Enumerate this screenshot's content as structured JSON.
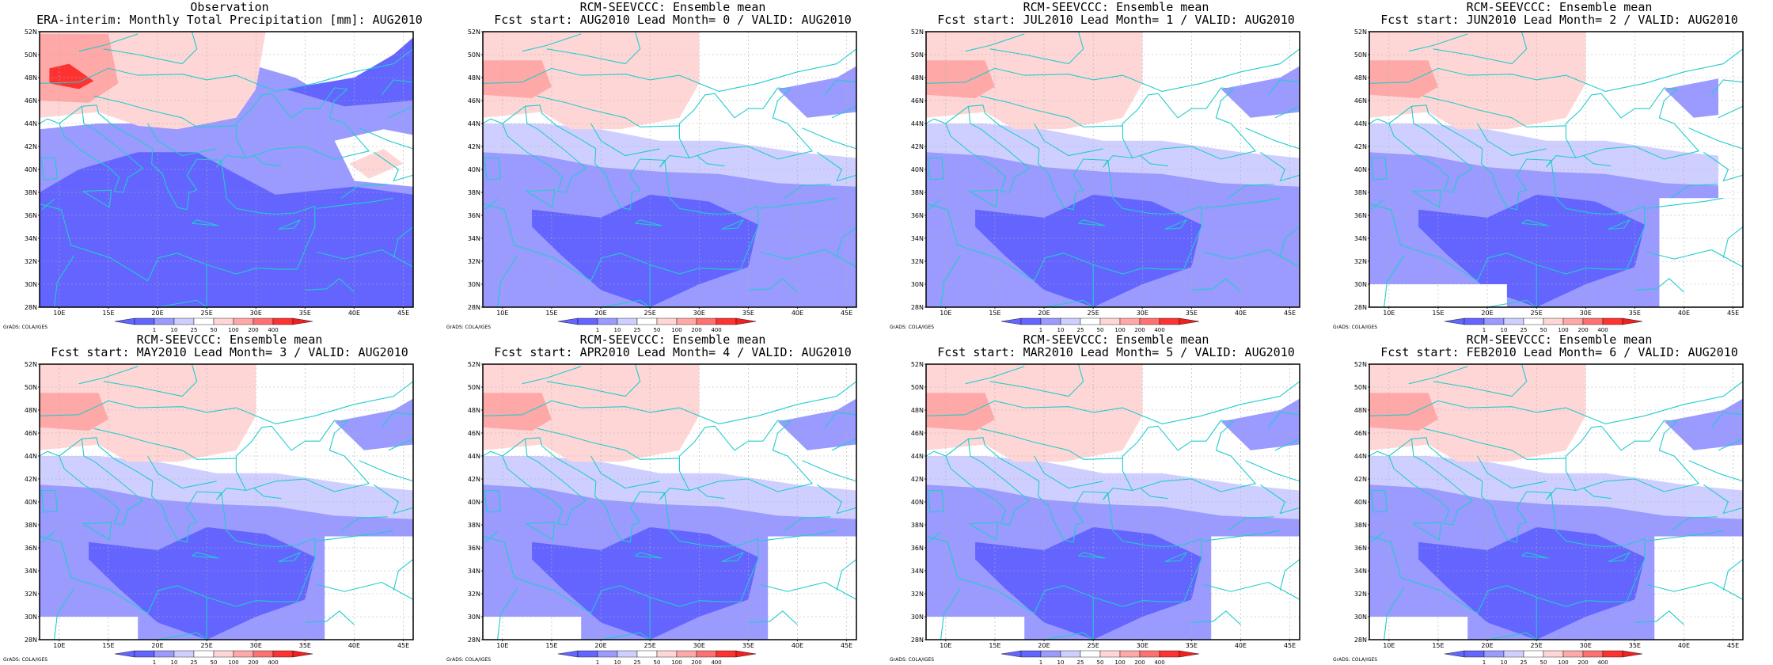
{
  "colors": {
    "coast": "#22cccc",
    "frame": "#000000",
    "gridline": "#b0b0b0",
    "palette": [
      "#6464ff",
      "#9a9aff",
      "#cfcfff",
      "#ffffff",
      "#ffd6d6",
      "#ffa8a8",
      "#ff7070",
      "#ff3232",
      "#f02020"
    ]
  },
  "map": {
    "lon_range": [
      8,
      46
    ],
    "lat_range": [
      28,
      52
    ],
    "lon_ticks": [
      "10E",
      "15E",
      "20E",
      "25E",
      "30E",
      "35E",
      "40E",
      "45E"
    ],
    "lat_ticks": [
      "28N",
      "30N",
      "32N",
      "34N",
      "36N",
      "38N",
      "40N",
      "42N",
      "44N",
      "46N",
      "48N",
      "50N",
      "52N"
    ]
  },
  "legend": {
    "labels": [
      "1",
      "10",
      "25",
      "50",
      "100",
      "200",
      "400"
    ]
  },
  "credit": "GrADS: COLA/IGES",
  "panels": [
    {
      "id": "obs",
      "title1": "Observation",
      "title2": "ERA-interim:  Monthly Total Precipitation [mm]: AUG2010",
      "missing": []
    },
    {
      "id": "lead0",
      "title1": "RCM-SEEVCCC: Ensemble mean",
      "title2": "Fcst start: AUG2010  Lead Month= 0 / VALID: AUG2010",
      "missing": []
    },
    {
      "id": "lead1",
      "title1": "RCM-SEEVCCC: Ensemble mean",
      "title2": "Fcst start: JUL2010  Lead Month= 1 / VALID: AUG2010",
      "missing": []
    },
    {
      "id": "lead2",
      "title1": "RCM-SEEVCCC: Ensemble mean",
      "title2": "Fcst start: JUN2010  Lead Month= 2 / VALID: AUG2010",
      "missing": [
        [
          8,
          22,
          28,
          30
        ],
        [
          37.5,
          46,
          28,
          37.5
        ],
        [
          43.5,
          46,
          37.5,
          52
        ]
      ]
    },
    {
      "id": "lead3",
      "title1": "RCM-SEEVCCC: Ensemble mean",
      "title2": "Fcst start: MAY2010  Lead Month= 3 / VALID: AUG2010",
      "missing": [
        [
          8,
          18,
          28,
          30
        ],
        [
          37,
          46,
          28,
          37
        ]
      ]
    },
    {
      "id": "lead4",
      "title1": "RCM-SEEVCCC: Ensemble mean",
      "title2": "Fcst start: APR2010  Lead Month= 4 / VALID: AUG2010",
      "missing": [
        [
          8,
          18,
          28,
          30
        ],
        [
          37,
          46,
          28,
          37
        ]
      ]
    },
    {
      "id": "lead5",
      "title1": "RCM-SEEVCCC: Ensemble mean",
      "title2": "Fcst start: MAR2010  Lead Month= 5 / VALID: AUG2010",
      "missing": [
        [
          8,
          18,
          28,
          30
        ],
        [
          37,
          46,
          28,
          37
        ]
      ]
    },
    {
      "id": "lead6",
      "title1": "RCM-SEEVCCC: Ensemble mean",
      "title2": "Fcst start: FEB2010  Lead Month= 6 / VALID: AUG2010",
      "missing": [
        [
          8,
          18,
          28,
          30
        ],
        [
          37,
          46,
          28,
          37
        ]
      ]
    }
  ]
}
